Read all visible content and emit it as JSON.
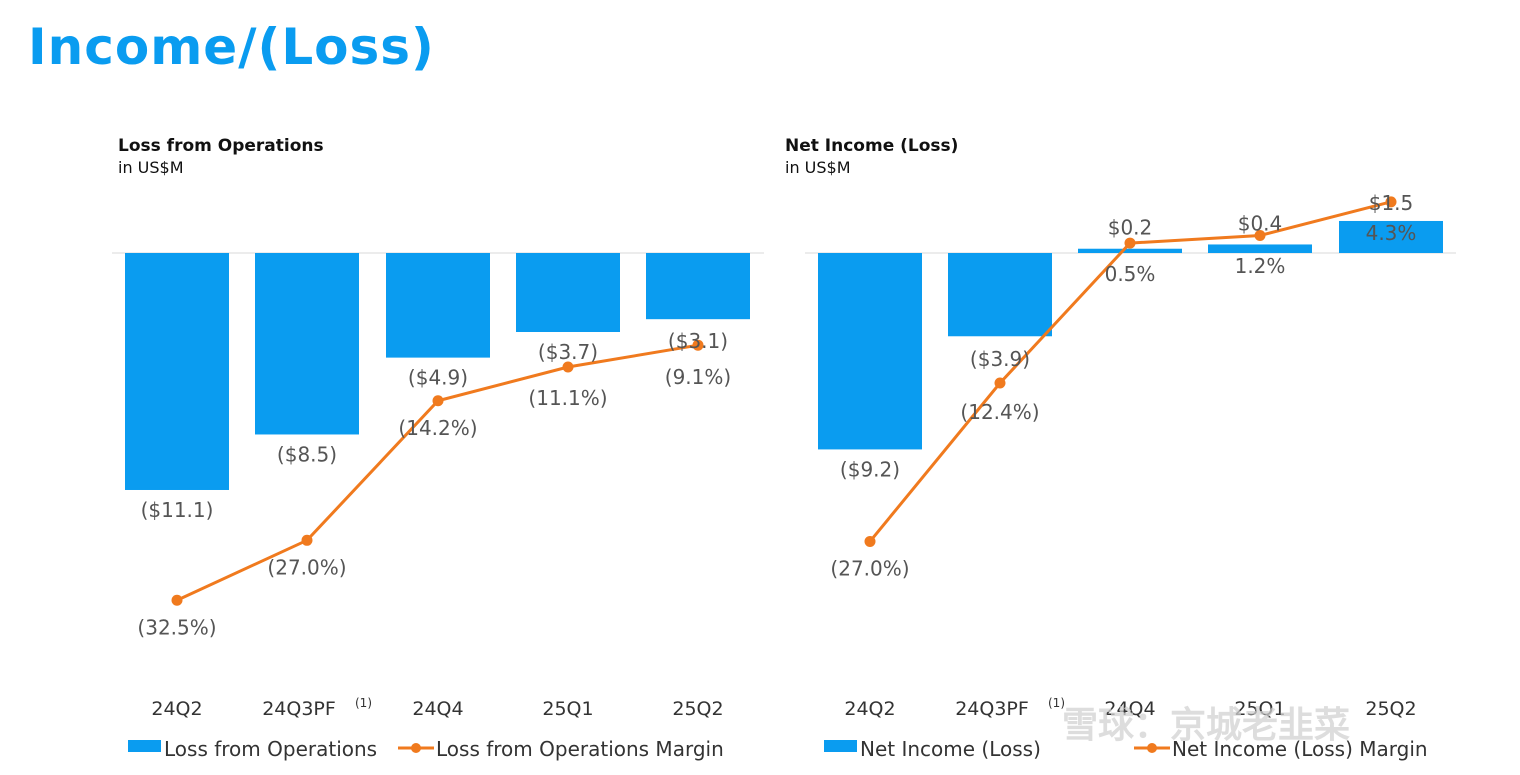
{
  "page": {
    "title": "Income/(Loss)"
  },
  "watermark": {
    "text": "雪球：京城老韭菜"
  },
  "colors": {
    "bar": "#0A9CF0",
    "line": "#F07A1E",
    "title": "#0A9CF0",
    "label": "#555555"
  },
  "chart_data": [
    {
      "type": "bar",
      "title": "Loss from Operations",
      "subtitle": "in US$M",
      "categories": [
        "24Q2",
        "24Q3PF",
        "24Q4",
        "25Q1",
        "25Q2"
      ],
      "category_superscripts": [
        "",
        "(1)",
        "",
        "",
        ""
      ],
      "series": [
        {
          "name": "Loss from Operations",
          "kind": "bar",
          "values": [
            -11.1,
            -8.5,
            -4.9,
            -3.7,
            -3.1
          ],
          "labels": [
            "($11.1)",
            "($8.5)",
            "($4.9)",
            "($3.7)",
            "($3.1)"
          ]
        },
        {
          "name": "Loss from Operations Margin",
          "kind": "line",
          "values": [
            -32.5,
            -27.0,
            -14.2,
            -11.1,
            -9.1
          ],
          "labels": [
            "(32.5%)",
            "(27.0%)",
            "(14.2%)",
            "(11.1%)",
            "(9.1%)"
          ]
        }
      ],
      "legend": "bottom",
      "grid": false
    },
    {
      "type": "bar",
      "title": "Net Income (Loss)",
      "subtitle": "in US$M",
      "categories": [
        "24Q2",
        "24Q3PF",
        "24Q4",
        "25Q1",
        "25Q2"
      ],
      "category_superscripts": [
        "",
        "(1)",
        "",
        "",
        ""
      ],
      "series": [
        {
          "name": "Net Income (Loss)",
          "kind": "bar",
          "values": [
            -9.2,
            -3.9,
            0.2,
            0.4,
            1.5
          ],
          "labels": [
            "($9.2)",
            "($3.9)",
            "$0.2",
            "$0.4",
            "$1.5"
          ]
        },
        {
          "name": "Net Income (Loss) Margin",
          "kind": "line",
          "values": [
            -27.0,
            -12.4,
            0.5,
            1.2,
            4.3
          ],
          "labels": [
            "(27.0%)",
            "(12.4%)",
            "0.5%",
            "1.2%",
            "4.3%"
          ]
        }
      ],
      "legend": "bottom",
      "grid": false
    }
  ]
}
